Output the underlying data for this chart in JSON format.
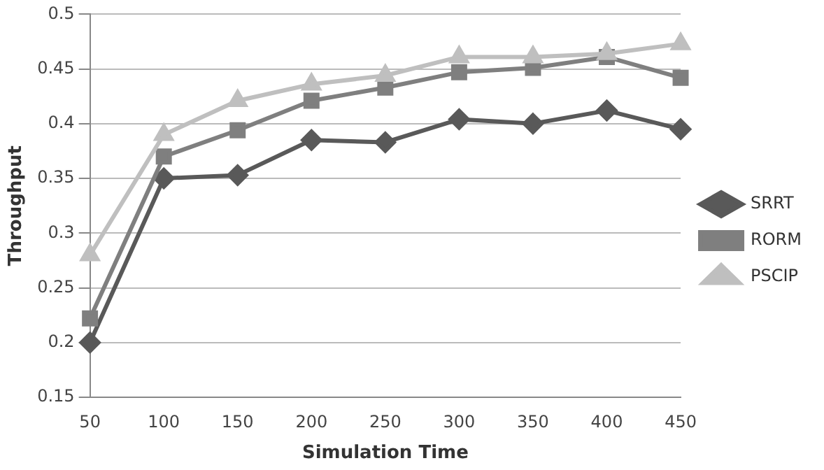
{
  "chart_data": {
    "type": "line",
    "xlabel": "Simulation Time",
    "ylabel": "Throughput",
    "categories": [
      "50",
      "100",
      "150",
      "200",
      "250",
      "300",
      "350",
      "400",
      "450"
    ],
    "series": [
      {
        "name": "SRRT",
        "color": "#595959",
        "marker": "diamond",
        "values": [
          0.2,
          0.35,
          0.353,
          0.385,
          0.383,
          0.404,
          0.4,
          0.412,
          0.395
        ]
      },
      {
        "name": "RORM",
        "color": "#7f7f7f",
        "marker": "square",
        "values": [
          0.222,
          0.37,
          0.394,
          0.421,
          0.433,
          0.447,
          0.451,
          0.461,
          0.442
        ]
      },
      {
        "name": "PSCIP",
        "color": "#bfbfbf",
        "marker": "triangle",
        "values": [
          0.28,
          0.39,
          0.421,
          0.436,
          0.444,
          0.461,
          0.461,
          0.464,
          0.473
        ]
      }
    ],
    "ylim": [
      0.15,
      0.5
    ],
    "yticks": [
      0.15,
      0.2,
      0.25,
      0.3,
      0.35,
      0.4,
      0.45,
      0.5
    ],
    "grid": "y",
    "legend": "right"
  }
}
